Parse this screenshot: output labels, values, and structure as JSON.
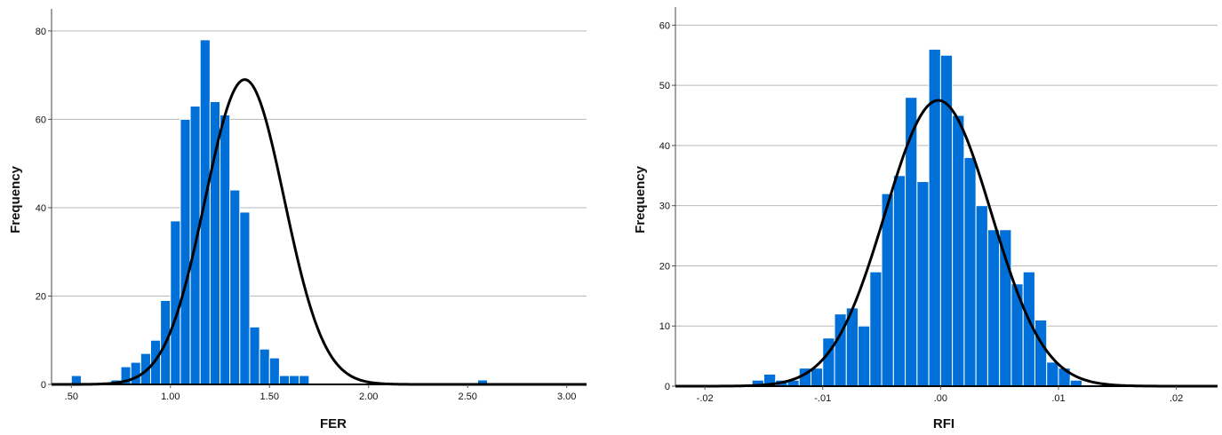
{
  "chart_data": [
    {
      "type": "bar",
      "xlabel": "FER",
      "ylabel": "Frequency",
      "xlim": [
        0.4,
        3.1
      ],
      "ylim": [
        0,
        85
      ],
      "xticks": [
        0.5,
        1.0,
        1.5,
        2.0,
        2.5,
        3.0
      ],
      "xtick_labels": [
        ".50",
        "1.00",
        "1.50",
        "2.00",
        "2.50",
        "3.00"
      ],
      "yticks": [
        0,
        20,
        40,
        60,
        80
      ],
      "ytick_labels": [
        "0",
        "20",
        "40",
        "60",
        "80"
      ],
      "grid": "horizontal",
      "bin_width": 0.05,
      "bins": [
        {
          "x": 0.5,
          "count": 2
        },
        {
          "x": 0.7,
          "count": 1
        },
        {
          "x": 0.75,
          "count": 4
        },
        {
          "x": 0.8,
          "count": 5
        },
        {
          "x": 0.85,
          "count": 7
        },
        {
          "x": 0.9,
          "count": 10
        },
        {
          "x": 0.95,
          "count": 19
        },
        {
          "x": 1.0,
          "count": 37
        },
        {
          "x": 1.05,
          "count": 60
        },
        {
          "x": 1.1,
          "count": 63
        },
        {
          "x": 1.15,
          "count": 78
        },
        {
          "x": 1.2,
          "count": 64
        },
        {
          "x": 1.25,
          "count": 61
        },
        {
          "x": 1.3,
          "count": 44
        },
        {
          "x": 1.35,
          "count": 39
        },
        {
          "x": 1.4,
          "count": 13
        },
        {
          "x": 1.45,
          "count": 8
        },
        {
          "x": 1.5,
          "count": 6
        },
        {
          "x": 1.55,
          "count": 2
        },
        {
          "x": 1.6,
          "count": 2
        },
        {
          "x": 1.65,
          "count": 2
        },
        {
          "x": 2.55,
          "count": 1
        }
      ],
      "normal_curve": {
        "mean": 1.375,
        "peak": 69,
        "sd": 0.2
      },
      "bar_color": "#0070D8",
      "curve_color": "#000000"
    },
    {
      "type": "bar",
      "xlabel": "RFI",
      "ylabel": "Frequency",
      "xlim": [
        -0.0225,
        0.0235
      ],
      "ylim": [
        0,
        63
      ],
      "xticks": [
        -0.02,
        -0.01,
        0.0,
        0.01,
        0.02
      ],
      "xtick_labels": [
        "-.02",
        "-.01",
        ".00",
        ".01",
        ".02"
      ],
      "yticks": [
        0,
        10,
        20,
        30,
        40,
        50,
        60
      ],
      "ytick_labels": [
        "0",
        "10",
        "20",
        "30",
        "40",
        "50",
        "60"
      ],
      "grid": "horizontal",
      "bin_width": 0.001,
      "bins": [
        {
          "x": -0.016,
          "count": 1
        },
        {
          "x": -0.015,
          "count": 2
        },
        {
          "x": -0.014,
          "count": 1
        },
        {
          "x": -0.013,
          "count": 1
        },
        {
          "x": -0.012,
          "count": 3
        },
        {
          "x": -0.011,
          "count": 3
        },
        {
          "x": -0.01,
          "count": 8
        },
        {
          "x": -0.009,
          "count": 12
        },
        {
          "x": -0.008,
          "count": 13
        },
        {
          "x": -0.007,
          "count": 10
        },
        {
          "x": -0.006,
          "count": 19
        },
        {
          "x": -0.005,
          "count": 32
        },
        {
          "x": -0.004,
          "count": 35
        },
        {
          "x": -0.003,
          "count": 48
        },
        {
          "x": -0.002,
          "count": 34
        },
        {
          "x": -0.001,
          "count": 56
        },
        {
          "x": 0.0,
          "count": 55
        },
        {
          "x": 0.001,
          "count": 45
        },
        {
          "x": 0.002,
          "count": 38
        },
        {
          "x": 0.003,
          "count": 30
        },
        {
          "x": 0.004,
          "count": 26
        },
        {
          "x": 0.005,
          "count": 26
        },
        {
          "x": 0.006,
          "count": 17
        },
        {
          "x": 0.007,
          "count": 19
        },
        {
          "x": 0.008,
          "count": 11
        },
        {
          "x": 0.009,
          "count": 4
        },
        {
          "x": 0.01,
          "count": 3
        },
        {
          "x": 0.011,
          "count": 1
        }
      ],
      "normal_curve": {
        "mean": -0.0002,
        "peak": 47.5,
        "sd": 0.0045
      },
      "bar_color": "#0070D8",
      "curve_color": "#000000"
    }
  ]
}
